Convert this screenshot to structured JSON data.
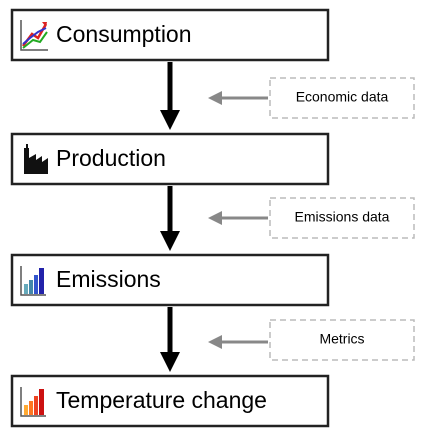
{
  "nodes": [
    {
      "label": "Consumption"
    },
    {
      "label": "Production"
    },
    {
      "label": "Emissions"
    },
    {
      "label": "Temperature change"
    }
  ],
  "inputs": [
    {
      "label": "Economic data"
    },
    {
      "label": "Emissions data"
    },
    {
      "label": "Metrics"
    }
  ]
}
